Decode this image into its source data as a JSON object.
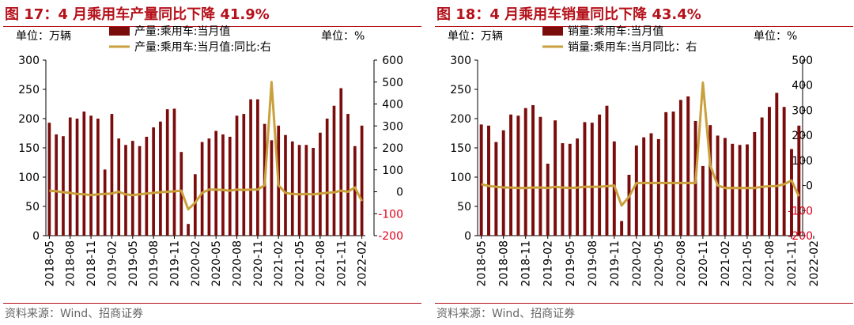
{
  "chart_data": [
    {
      "type": "bar",
      "title": "图 17：4 月乘用车产量同比下降 41.9%",
      "left_unit": "单位：万辆",
      "right_unit": "单位：%",
      "source": "资料来源：Wind、招商证券",
      "ylim_left": [
        0,
        300
      ],
      "ylim_right": [
        -200,
        600
      ],
      "left_ticks": [
        "0",
        "50",
        "100",
        "150",
        "200",
        "250",
        "300"
      ],
      "right_ticks": [
        "-200",
        "-100",
        "0",
        "100",
        "200",
        "300",
        "400",
        "500",
        "600"
      ],
      "x_ticks": [
        "2018-05",
        "2018-08",
        "2018-11",
        "2019-02",
        "2019-05",
        "2019-08",
        "2019-11",
        "2020-02",
        "2020-05",
        "2020-08",
        "2020-11",
        "2021-02",
        "2021-05",
        "2021-08",
        "2021-11",
        "2022-02"
      ],
      "series": [
        {
          "name": "产量:乘用车:当月值",
          "kind": "bar",
          "color": "#7b0c0c",
          "values": [
            193,
            173,
            170,
            202,
            200,
            212,
            205,
            200,
            113,
            208,
            166,
            155,
            162,
            153,
            169,
            185,
            195,
            216,
            217,
            143,
            20,
            105,
            160,
            166,
            179,
            173,
            169,
            205,
            208,
            233,
            233,
            191,
            163,
            188,
            172,
            161,
            155,
            155,
            150,
            176,
            200,
            222,
            252,
            208,
            153,
            188
          ]
        },
        {
          "name": "产量:乘用车:当月值:同比:右",
          "kind": "line",
          "color": "#c9a03c",
          "values": [
            5,
            2,
            -2,
            -5,
            -10,
            -12,
            -15,
            -12,
            -10,
            -8,
            0,
            -12,
            -15,
            -12,
            -8,
            -5,
            -2,
            0,
            2,
            5,
            -80,
            -50,
            -5,
            10,
            10,
            8,
            5,
            10,
            8,
            10,
            10,
            30,
            500,
            30,
            -5,
            -10,
            -12,
            -10,
            -12,
            -8,
            -5,
            -3,
            5,
            0,
            20,
            -42
          ]
        }
      ]
    },
    {
      "type": "bar",
      "title": "图 18：4 月乘用车销量同比下降 43.4%",
      "left_unit": "单位：万辆",
      "right_unit": "单位：%",
      "source": "资料来源：Wind、招商证券",
      "ylim_left": [
        0,
        300
      ],
      "ylim_right": [
        -200,
        500
      ],
      "left_ticks": [
        "0",
        "50",
        "100",
        "150",
        "200",
        "250",
        "300"
      ],
      "right_ticks": [
        "-200",
        "-100",
        "0",
        "100",
        "200",
        "300",
        "400",
        "500"
      ],
      "x_ticks": [
        "2018-05",
        "2018-08",
        "2018-11",
        "2019-02",
        "2019-05",
        "2019-08",
        "2019-11",
        "2020-02",
        "2020-05",
        "2020-08",
        "2020-11",
        "2021-02",
        "2021-05",
        "2021-08",
        "2021-11",
        "2022-02"
      ],
      "series": [
        {
          "name": "销量:乘用车:当月值",
          "kind": "bar",
          "color": "#7b0c0c",
          "values": [
            190,
            188,
            160,
            180,
            207,
            205,
            218,
            223,
            203,
            123,
            197,
            158,
            157,
            166,
            194,
            193,
            207,
            222,
            161,
            25,
            104,
            154,
            168,
            175,
            165,
            211,
            212,
            232,
            238,
            196,
            119,
            189,
            171,
            167,
            157,
            155,
            156,
            177,
            202,
            220,
            244,
            220,
            148,
            188
          ]
        },
        {
          "name": "销量:乘用车:当月同比：右",
          "kind": "line",
          "color": "#c9a03c",
          "values": [
            5,
            -2,
            -5,
            -8,
            -8,
            -10,
            -10,
            -8,
            -8,
            -10,
            -5,
            -8,
            -10,
            -8,
            -5,
            -5,
            -5,
            -3,
            0,
            -80,
            -45,
            10,
            10,
            10,
            10,
            10,
            10,
            10,
            10,
            10,
            410,
            80,
            0,
            -10,
            -10,
            -10,
            -10,
            -10,
            -5,
            -3,
            -2,
            5,
            20,
            -43
          ]
        }
      ]
    }
  ]
}
